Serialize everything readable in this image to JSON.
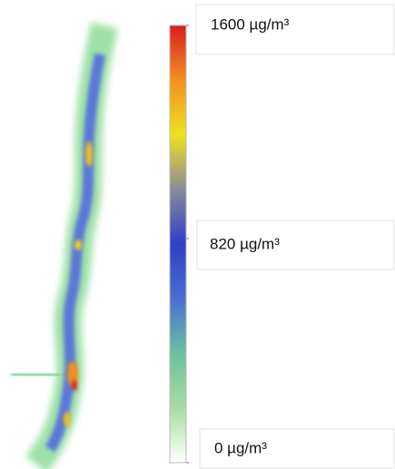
{
  "chart_data": {
    "type": "heatmap",
    "colorbar": {
      "lim": [
        0,
        1600
      ],
      "ticks": [
        {
          "value": 1600,
          "label": "1600 µg/m³"
        },
        {
          "value": 820,
          "label": "820 µg/m³"
        },
        {
          "value": 0,
          "label": "0 µg/m³"
        }
      ],
      "colors": [
        "#ffffff",
        "#a8dca0",
        "#6cc0a0",
        "#4a6fd0",
        "#2e3fc8",
        "#8a8a9a",
        "#f0e020",
        "#f09020",
        "#d81e1e"
      ]
    }
  }
}
